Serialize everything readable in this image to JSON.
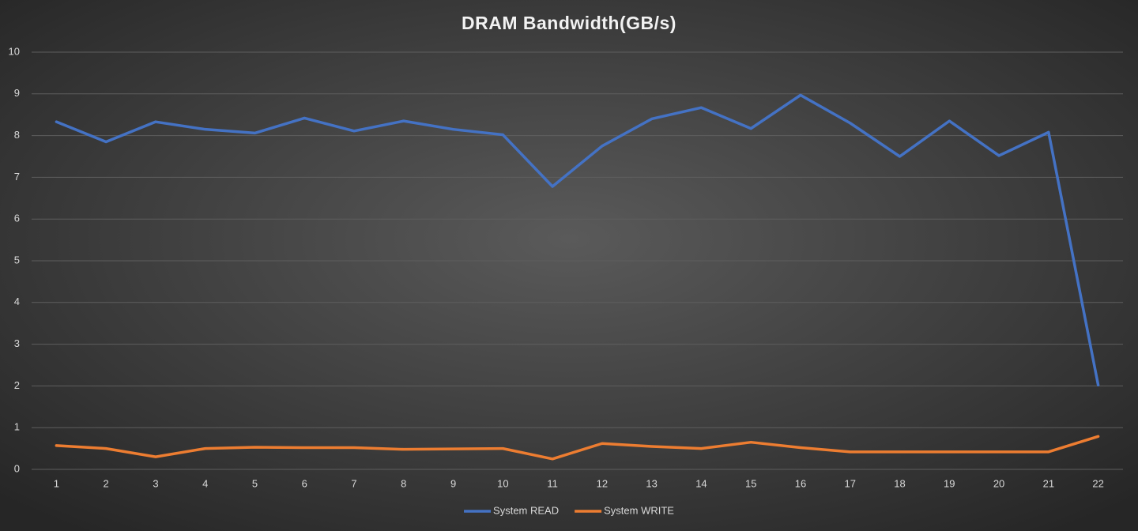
{
  "chart_data": {
    "type": "line",
    "title": "DRAM Bandwidth(GB/s)",
    "categories": [
      "1",
      "2",
      "3",
      "4",
      "5",
      "6",
      "7",
      "8",
      "9",
      "10",
      "11",
      "12",
      "13",
      "14",
      "15",
      "16",
      "17",
      "18",
      "19",
      "20",
      "21",
      "22"
    ],
    "series": [
      {
        "name": "System READ",
        "color": "#4472c4",
        "values": [
          8.33,
          7.85,
          8.33,
          8.15,
          8.06,
          8.42,
          8.11,
          8.35,
          8.15,
          8.02,
          6.78,
          7.75,
          8.4,
          8.67,
          8.17,
          8.97,
          8.3,
          7.5,
          8.35,
          7.52,
          8.08,
          2.02
        ]
      },
      {
        "name": "System WRITE",
        "color": "#ed7d31",
        "values": [
          0.57,
          0.5,
          0.3,
          0.5,
          0.53,
          0.52,
          0.52,
          0.48,
          0.49,
          0.5,
          0.25,
          0.62,
          0.55,
          0.5,
          0.65,
          0.52,
          0.42,
          0.42,
          0.42,
          0.42,
          0.42,
          0.79
        ]
      }
    ],
    "ylim": [
      0,
      10
    ],
    "yticks": [
      0,
      1,
      2,
      3,
      4,
      5,
      6,
      7,
      8,
      9,
      10
    ],
    "grid": true,
    "legend": "bottom"
  }
}
